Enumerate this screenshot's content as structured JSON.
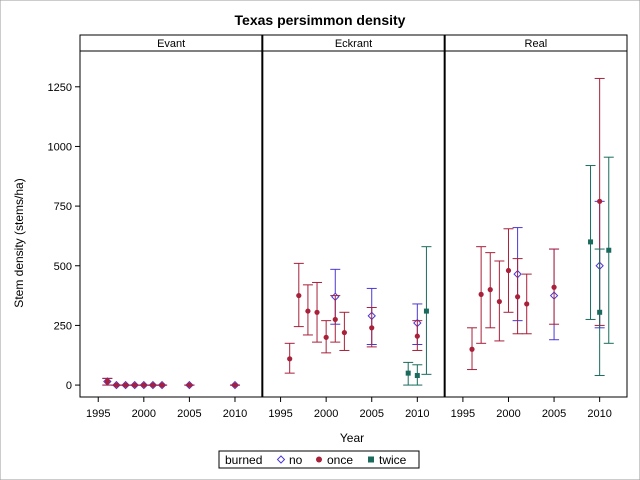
{
  "chart_data": {
    "type": "scatter",
    "title": "Texas persimmon density",
    "xlabel": "Year",
    "ylabel": "Stem density (stems/ha)",
    "xlim": [
      1993,
      2013
    ],
    "ylim": [
      -50,
      1400
    ],
    "x_ticks": [
      1995,
      2000,
      2005,
      2010
    ],
    "y_ticks": [
      0,
      250,
      500,
      750,
      1000,
      1250
    ],
    "y_tick_labels": [
      "0",
      "250",
      "500",
      "750",
      "1000",
      "1250"
    ],
    "panels": [
      "Evant",
      "Eckrant",
      "Real"
    ],
    "legend": {
      "title": "burned",
      "position": "bottom"
    },
    "error_bars": "mean with upper and lower bounds",
    "series": [
      {
        "name": "no",
        "color": "#4b38d6",
        "marker": "open-diamond",
        "points": [
          {
            "panel": "Evant",
            "x": 1996,
            "y": 15,
            "lo": 0,
            "hi": 28
          },
          {
            "panel": "Evant",
            "x": 1997,
            "y": 0,
            "lo": 0,
            "hi": 0
          },
          {
            "panel": "Evant",
            "x": 1998,
            "y": 0,
            "lo": 0,
            "hi": 0
          },
          {
            "panel": "Evant",
            "x": 1999,
            "y": 0,
            "lo": 0,
            "hi": 0
          },
          {
            "panel": "Evant",
            "x": 2000,
            "y": 0,
            "lo": 0,
            "hi": 0
          },
          {
            "panel": "Evant",
            "x": 2001,
            "y": 0,
            "lo": 0,
            "hi": 0
          },
          {
            "panel": "Evant",
            "x": 2002,
            "y": 0,
            "lo": 0,
            "hi": 0
          },
          {
            "panel": "Evant",
            "x": 2005,
            "y": 0,
            "lo": 0,
            "hi": 0
          },
          {
            "panel": "Evant",
            "x": 2010,
            "y": 0,
            "lo": 0,
            "hi": 0
          },
          {
            "panel": "Eckrant",
            "x": 2001,
            "y": 370,
            "lo": 255,
            "hi": 485
          },
          {
            "panel": "Eckrant",
            "x": 2005,
            "y": 290,
            "lo": 170,
            "hi": 405
          },
          {
            "panel": "Eckrant",
            "x": 2010,
            "y": 260,
            "lo": 170,
            "hi": 340
          },
          {
            "panel": "Real",
            "x": 2001,
            "y": 465,
            "lo": 270,
            "hi": 660
          },
          {
            "panel": "Real",
            "x": 2005,
            "y": 375,
            "lo": 190,
            "hi": 570
          },
          {
            "panel": "Real",
            "x": 2010,
            "y": 500,
            "lo": 240,
            "hi": 770
          }
        ]
      },
      {
        "name": "once",
        "color": "#a8203a",
        "marker": "filled-circle",
        "points": [
          {
            "panel": "Evant",
            "x": 1996,
            "y": 15,
            "lo": 0,
            "hi": 28
          },
          {
            "panel": "Evant",
            "x": 1997,
            "y": 0,
            "lo": 0,
            "hi": 0
          },
          {
            "panel": "Evant",
            "x": 1998,
            "y": 0,
            "lo": 0,
            "hi": 0
          },
          {
            "panel": "Evant",
            "x": 1999,
            "y": 0,
            "lo": 0,
            "hi": 0
          },
          {
            "panel": "Evant",
            "x": 2000,
            "y": 0,
            "lo": 0,
            "hi": 0
          },
          {
            "panel": "Evant",
            "x": 2001,
            "y": 0,
            "lo": 0,
            "hi": 0
          },
          {
            "panel": "Evant",
            "x": 2002,
            "y": 0,
            "lo": 0,
            "hi": 0
          },
          {
            "panel": "Evant",
            "x": 2005,
            "y": 0,
            "lo": 0,
            "hi": 0
          },
          {
            "panel": "Evant",
            "x": 2010,
            "y": 0,
            "lo": 0,
            "hi": 0
          },
          {
            "panel": "Eckrant",
            "x": 1996,
            "y": 110,
            "lo": 50,
            "hi": 175
          },
          {
            "panel": "Eckrant",
            "x": 1997,
            "y": 375,
            "lo": 245,
            "hi": 510
          },
          {
            "panel": "Eckrant",
            "x": 1998,
            "y": 310,
            "lo": 210,
            "hi": 420
          },
          {
            "panel": "Eckrant",
            "x": 1999,
            "y": 305,
            "lo": 180,
            "hi": 430
          },
          {
            "panel": "Eckrant",
            "x": 2000,
            "y": 200,
            "lo": 135,
            "hi": 270
          },
          {
            "panel": "Eckrant",
            "x": 2001,
            "y": 275,
            "lo": 180,
            "hi": 375
          },
          {
            "panel": "Eckrant",
            "x": 2002,
            "y": 220,
            "lo": 145,
            "hi": 305
          },
          {
            "panel": "Eckrant",
            "x": 2005,
            "y": 240,
            "lo": 160,
            "hi": 325
          },
          {
            "panel": "Eckrant",
            "x": 2010,
            "y": 205,
            "lo": 145,
            "hi": 270
          },
          {
            "panel": "Real",
            "x": 1996,
            "y": 150,
            "lo": 65,
            "hi": 240
          },
          {
            "panel": "Real",
            "x": 1997,
            "y": 380,
            "lo": 175,
            "hi": 580
          },
          {
            "panel": "Real",
            "x": 1998,
            "y": 400,
            "lo": 240,
            "hi": 555
          },
          {
            "panel": "Real",
            "x": 1999,
            "y": 350,
            "lo": 185,
            "hi": 520
          },
          {
            "panel": "Real",
            "x": 2000,
            "y": 480,
            "lo": 305,
            "hi": 655
          },
          {
            "panel": "Real",
            "x": 2001,
            "y": 370,
            "lo": 215,
            "hi": 530
          },
          {
            "panel": "Real",
            "x": 2002,
            "y": 340,
            "lo": 215,
            "hi": 465
          },
          {
            "panel": "Real",
            "x": 2005,
            "y": 410,
            "lo": 255,
            "hi": 570
          },
          {
            "panel": "Real",
            "x": 2010,
            "y": 770,
            "lo": 250,
            "hi": 1285
          }
        ]
      },
      {
        "name": "twice",
        "color": "#1a6b5e",
        "marker": "filled-square",
        "points": [
          {
            "panel": "Eckrant",
            "x": 2009,
            "y": 50,
            "lo": 0,
            "hi": 95
          },
          {
            "panel": "Eckrant",
            "x": 2010,
            "y": 40,
            "lo": 0,
            "hi": 85
          },
          {
            "panel": "Eckrant",
            "x": 2011,
            "y": 310,
            "lo": 45,
            "hi": 580
          },
          {
            "panel": "Real",
            "x": 2009,
            "y": 600,
            "lo": 275,
            "hi": 920
          },
          {
            "panel": "Real",
            "x": 2010,
            "y": 305,
            "lo": 40,
            "hi": 570
          },
          {
            "panel": "Real",
            "x": 2011,
            "y": 565,
            "lo": 175,
            "hi": 955
          }
        ]
      }
    ]
  }
}
